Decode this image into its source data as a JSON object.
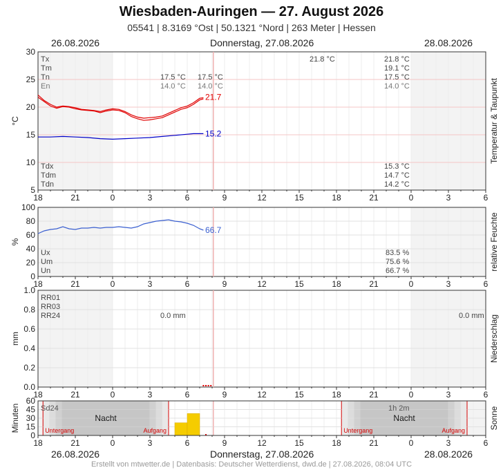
{
  "header": {
    "title": "Wiesbaden-Auringen  —  27. August 2026",
    "subtitle": "05541  |  8.3169 °Ost  |  50.1321 °Nord  |  263 Meter  |  Hessen"
  },
  "dates": {
    "left": "26.08.2026",
    "center": "Donnerstag, 27.08.2026",
    "right": "28.08.2026"
  },
  "footer": "Erstellt von mtwetter.de | Datenbasis: Deutscher Wetterdienst, dwd.de | 27.08.2026, 08:04 UTC",
  "x_ticks": [
    "18",
    "21",
    "0",
    "3",
    "6",
    "9",
    "12",
    "15",
    "18",
    "21",
    "0",
    "3",
    "6"
  ],
  "chart_data": [
    {
      "type": "line",
      "id": "temperature",
      "side_label": "Temperatur & Taupunkt",
      "ylabel": "°C",
      "ylim": [
        5,
        30
      ],
      "yticks": [
        "30",
        "25",
        "20",
        "15",
        "10",
        "5"
      ],
      "x_range_hours": [
        -6,
        30
      ],
      "current_x_hours": 8.1,
      "legend_top": [
        {
          "key": "Tx",
          "mid": "",
          "c1": "21.8 °C",
          "c2": "21.8 °C"
        },
        {
          "key": "Tm",
          "mid": "",
          "c1": "",
          "c2": "19.1 °C"
        },
        {
          "key": "Tn",
          "mid": "17.5 °C",
          "c1": "17.5 °C",
          "c2": "17.5 °C"
        },
        {
          "key": "En",
          "mid": "14.0 °C",
          "c1": "14.0 °C",
          "c2": "14.0 °C"
        }
      ],
      "legend_bottom": [
        {
          "key": "Tdx",
          "val": "15.3 °C"
        },
        {
          "key": "Tdm",
          "val": "14.7 °C"
        },
        {
          "key": "Tdn",
          "val": "14.2 °C"
        }
      ],
      "last_labels": {
        "temp": "21.7",
        "dew": "15.2"
      },
      "colors": {
        "temp": "#e00000",
        "dew": "#0000c8"
      },
      "series": [
        {
          "name": "T",
          "x": [
            -6,
            -5.5,
            -5,
            -4.5,
            -4,
            -3.5,
            -3,
            -2.5,
            -2,
            -1.5,
            -1,
            -0.5,
            0,
            0.5,
            1,
            1.5,
            2,
            2.5,
            3,
            3.5,
            4,
            4.5,
            5,
            5.5,
            6,
            6.5,
            7,
            7.3
          ],
          "values": [
            22.2,
            21.2,
            20.5,
            20.0,
            20.2,
            20.1,
            19.9,
            19.6,
            19.5,
            19.4,
            19.2,
            19.5,
            19.7,
            19.6,
            19.2,
            18.6,
            18.2,
            18.0,
            18.1,
            18.2,
            18.4,
            18.9,
            19.4,
            19.9,
            20.2,
            20.8,
            21.6,
            21.7
          ]
        },
        {
          "name": "T2",
          "x": [
            -6,
            -5.5,
            -5,
            -4.5,
            -4,
            -3.5,
            -3,
            -2.5,
            -2,
            -1.5,
            -1,
            -0.5,
            0,
            0.5,
            1,
            1.5,
            2,
            2.5,
            3,
            3.5,
            4,
            4.5,
            5,
            5.5,
            6,
            6.5,
            7,
            7.3
          ],
          "values": [
            21.8,
            21.0,
            20.2,
            19.8,
            20.1,
            20.0,
            19.7,
            19.5,
            19.4,
            19.3,
            19.0,
            19.3,
            19.5,
            19.4,
            19.0,
            18.3,
            17.9,
            17.6,
            17.7,
            17.9,
            18.1,
            18.6,
            19.1,
            19.6,
            19.9,
            20.5,
            21.3,
            21.5
          ]
        },
        {
          "name": "Td",
          "x": [
            -6,
            -5,
            -4,
            -3,
            -2,
            -1,
            0,
            1,
            2,
            3,
            4,
            5,
            6,
            6.5,
            7,
            7.3
          ],
          "values": [
            14.6,
            14.6,
            14.7,
            14.6,
            14.5,
            14.3,
            14.2,
            14.3,
            14.4,
            14.5,
            14.7,
            14.9,
            15.1,
            15.2,
            15.2,
            15.2
          ]
        }
      ]
    },
    {
      "type": "line",
      "id": "humidity",
      "side_label": "relative Feuchte",
      "ylabel": "%",
      "ylim": [
        0,
        100
      ],
      "yticks": [
        "100",
        "80",
        "60",
        "40",
        "20",
        "0"
      ],
      "legend": [
        {
          "key": "Ux",
          "val": "83.5 %"
        },
        {
          "key": "Um",
          "val": "75.6 %"
        },
        {
          "key": "Un",
          "val": "66.7 %"
        }
      ],
      "last_label": "66.7",
      "color": "#3a5fd0",
      "series": [
        {
          "name": "U",
          "x": [
            -6,
            -5.5,
            -5,
            -4.5,
            -4,
            -3.5,
            -3,
            -2.5,
            -2,
            -1.5,
            -1,
            -0.5,
            0,
            0.5,
            1,
            1.5,
            2,
            2.5,
            3,
            3.5,
            4,
            4.5,
            5,
            5.5,
            6,
            6.5,
            7,
            7.3
          ],
          "values": [
            62,
            66,
            68,
            69,
            72,
            69,
            68,
            70,
            70,
            71,
            70,
            71,
            71,
            72,
            71,
            70,
            72,
            76,
            78,
            80,
            81,
            82,
            80,
            79,
            77,
            74,
            69,
            67
          ]
        }
      ]
    },
    {
      "type": "bar",
      "id": "precipitation",
      "side_label": "Niederschlag",
      "ylabel": "mm",
      "ylim": [
        0,
        1.0
      ],
      "yticks": [
        "1.0",
        "0.8",
        "0.6",
        "0.4",
        "0.2",
        "0.0"
      ],
      "legend": [
        "RR01",
        "RR03",
        "RR24"
      ],
      "rr24": {
        "mid": "0.0 mm",
        "right": "0.0 mm"
      },
      "color": "#e00000",
      "x": [
        7.3,
        7.5,
        7.7,
        7.9
      ],
      "values": [
        0,
        0,
        0,
        0
      ]
    },
    {
      "type": "bar",
      "id": "sunshine",
      "side_label": "Sonne",
      "ylabel": "Minuten",
      "ylim": [
        0,
        60
      ],
      "yticks": [
        "60",
        "45",
        "30",
        "15",
        "0"
      ],
      "legend": "Sd24",
      "total": "1h 2m",
      "night_label": "Nacht",
      "sunset_label": "Untergang",
      "sunrise_label": "Aufgang",
      "color": "#f5cc00",
      "nights": [
        {
          "sunset_h": -5.6,
          "sunrise_h": 4.5
        },
        {
          "sunset_h": 18.4,
          "sunrise_h": 28.5
        }
      ],
      "x": [
        5,
        6,
        7
      ],
      "values": [
        22,
        38,
        1
      ]
    }
  ]
}
